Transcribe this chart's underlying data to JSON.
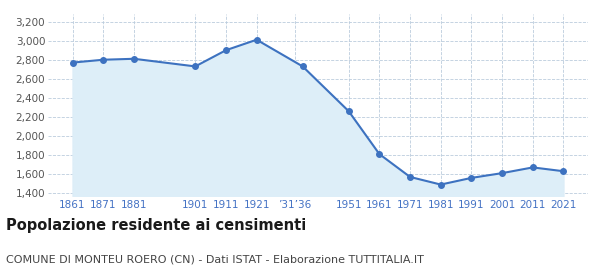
{
  "years": [
    1861,
    1871,
    1881,
    1901,
    1911,
    1921,
    1936,
    1951,
    1961,
    1971,
    1981,
    1991,
    2001,
    2011,
    2021
  ],
  "population": [
    2770,
    2800,
    2810,
    2730,
    2900,
    3010,
    2730,
    2260,
    1810,
    1570,
    1490,
    1560,
    1610,
    1670,
    1630
  ],
  "x_tick_positions": [
    1861,
    1871,
    1881,
    1901,
    1911,
    1921,
    1933.5,
    1951,
    1961,
    1971,
    1981,
    1991,
    2001,
    2011,
    2021
  ],
  "x_tick_labels": [
    "1861",
    "1871",
    "1881",
    "1901",
    "1911",
    "1921",
    "’31’36",
    "1951",
    "1961",
    "1971",
    "1981",
    "1991",
    "2001",
    "2011",
    "2021"
  ],
  "line_color": "#3d72c0",
  "fill_color": "#ddeef8",
  "marker_color": "#3d72c0",
  "background_color": "#ffffff",
  "grid_color": "#bbccdd",
  "ylabel_ticks": [
    1400,
    1600,
    1800,
    2000,
    2200,
    2400,
    2600,
    2800,
    3000,
    3200
  ],
  "ylim": [
    1370,
    3280
  ],
  "xlim_left": 1853,
  "xlim_right": 2029,
  "title": "Popolazione residente ai censimenti",
  "subtitle": "COMUNE DI MONTEU ROERO (CN) - Dati ISTAT - Elaborazione TUTTITALIA.IT",
  "title_fontsize": 10.5,
  "subtitle_fontsize": 8,
  "tick_color": "#4472c4",
  "ytick_color": "#555555",
  "tick_fontsize": 7.5
}
